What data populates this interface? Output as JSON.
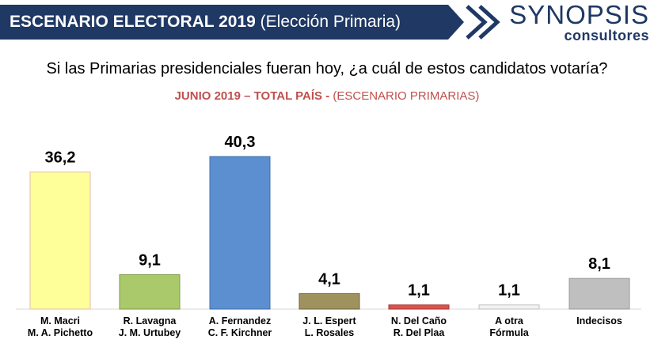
{
  "header": {
    "title_bold": "ESCENARIO ELECTORAL 2019",
    "title_rest": "(Elección Primaria)"
  },
  "logo": {
    "top": "SYNOPSIS",
    "bottom": "consultores"
  },
  "colors": {
    "header_bg": "#1f3864",
    "subtitle": "#c0504d"
  },
  "chart_data": {
    "type": "bar",
    "title": "Si las Primarias presidenciales fueran hoy, ¿a cuál de estos candidatos votaría?",
    "subtitle_bold": "JUNIO 2019 – TOTAL PAÍS -",
    "subtitle_rest": "(ESCENARIO PRIMARIAS)",
    "categories": [
      [
        "M. Macri",
        "M. A. Pichetto"
      ],
      [
        "R. Lavagna",
        "J. M. Urtubey"
      ],
      [
        "A. Fernandez",
        "C. F. Kirchner"
      ],
      [
        "J. L. Espert",
        "L. Rosales"
      ],
      [
        "N. Del Caño",
        "R. Del Plaa"
      ],
      [
        "A otra",
        "Fórmula"
      ],
      [
        "Indecisos"
      ]
    ],
    "values": [
      36.2,
      9.1,
      40.3,
      4.1,
      1.1,
      1.1,
      8.1
    ],
    "value_labels": [
      "36,2",
      "9,1",
      "40,3",
      "4,1",
      "1,1",
      "1,1",
      "8,1"
    ],
    "bar_colors": [
      "#ffff99",
      "#a9c96a",
      "#5b8fd0",
      "#a0925e",
      "#d9534f",
      "#f2f2f2",
      "#bfbfbf"
    ],
    "bar_strokes": [
      "#e6b8b7",
      "#7f9a45",
      "#3f6fae",
      "#6e6440",
      "#a33",
      "#bfbfbf",
      "#999999"
    ],
    "ylim": [
      0,
      45
    ],
    "grid": false,
    "legend": "none"
  }
}
